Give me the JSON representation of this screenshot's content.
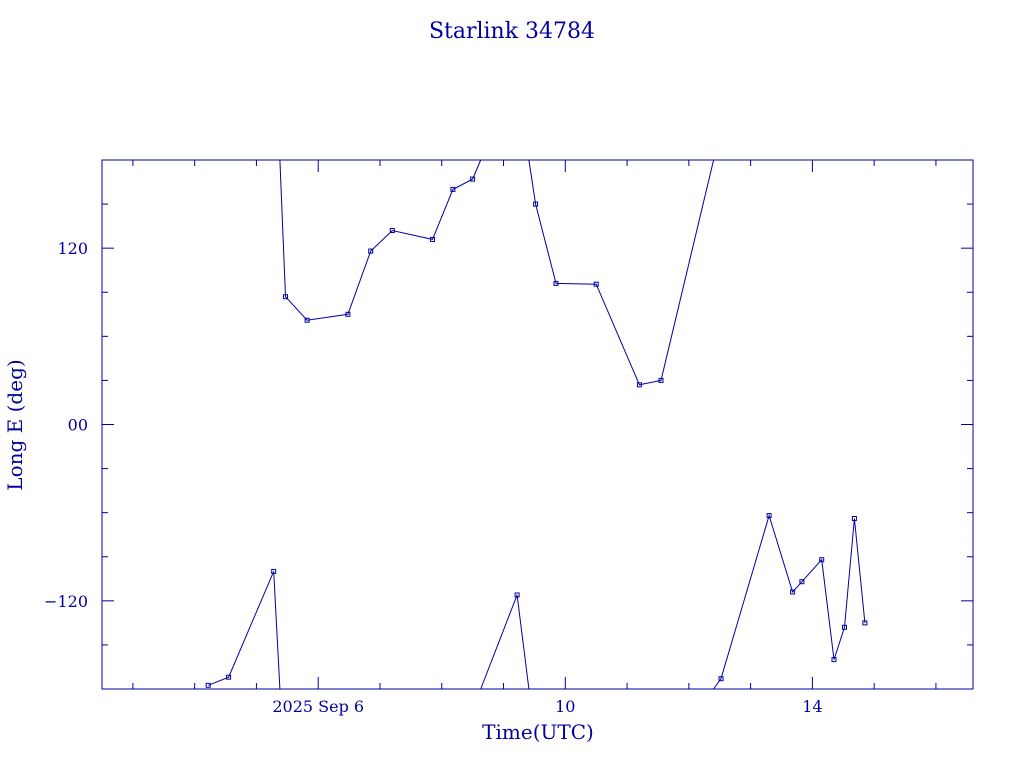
{
  "chart_data": {
    "type": "scatter",
    "title": "Starlink 34784",
    "xlabel": "Time(UTC)",
    "ylabel": "Long E (deg)",
    "x_unit": "days",
    "xlim": [
      2.5,
      16.6
    ],
    "ylim": [
      -180,
      180
    ],
    "x_major_ticks": [
      {
        "x": 6,
        "label": "2025 Sep  6"
      },
      {
        "x": 10,
        "label": "10"
      },
      {
        "x": 14,
        "label": "14"
      }
    ],
    "x_minor_ticks": [
      3,
      4,
      5,
      7,
      8,
      9,
      11,
      12,
      13,
      15,
      16
    ],
    "y_major_ticks": [
      {
        "y": 120,
        "label": "120"
      },
      {
        "y": 0,
        "label": "00"
      },
      {
        "y": -120,
        "label": "−120"
      }
    ],
    "y_minor_ticks": [
      150,
      90,
      60,
      30,
      -30,
      -60,
      -90,
      -150
    ],
    "color": "#0000a0",
    "series": [
      {
        "points": [
          [
            4.22,
            -177.5
          ],
          [
            4.55,
            -172
          ],
          [
            5.28,
            -100
          ],
          [
            5.38,
            -180
          ]
        ]
      },
      {
        "points": [
          [
            5.38,
            180
          ],
          [
            5.47,
            87
          ],
          [
            5.82,
            71
          ],
          [
            6.48,
            75
          ],
          [
            6.85,
            118
          ],
          [
            7.2,
            132
          ],
          [
            7.85,
            126
          ],
          [
            8.18,
            160
          ],
          [
            8.5,
            167
          ],
          [
            8.63,
            180
          ]
        ]
      },
      {
        "points": [
          [
            8.63,
            -180
          ],
          [
            9.22,
            -116
          ],
          [
            9.41,
            -180
          ]
        ]
      },
      {
        "points": [
          [
            9.41,
            180
          ],
          [
            9.52,
            150
          ],
          [
            9.85,
            96
          ],
          [
            10.5,
            95.5
          ],
          [
            11.2,
            27
          ],
          [
            11.55,
            30
          ],
          [
            12.4,
            180
          ]
        ]
      },
      {
        "points": [
          [
            12.4,
            -180
          ],
          [
            12.52,
            -173
          ],
          [
            13.3,
            -62
          ],
          [
            13.68,
            -114
          ],
          [
            13.83,
            -107
          ],
          [
            14.15,
            -92
          ],
          [
            14.35,
            -160
          ],
          [
            14.52,
            -138
          ],
          [
            14.68,
            -64
          ],
          [
            14.85,
            -135
          ]
        ]
      }
    ]
  }
}
